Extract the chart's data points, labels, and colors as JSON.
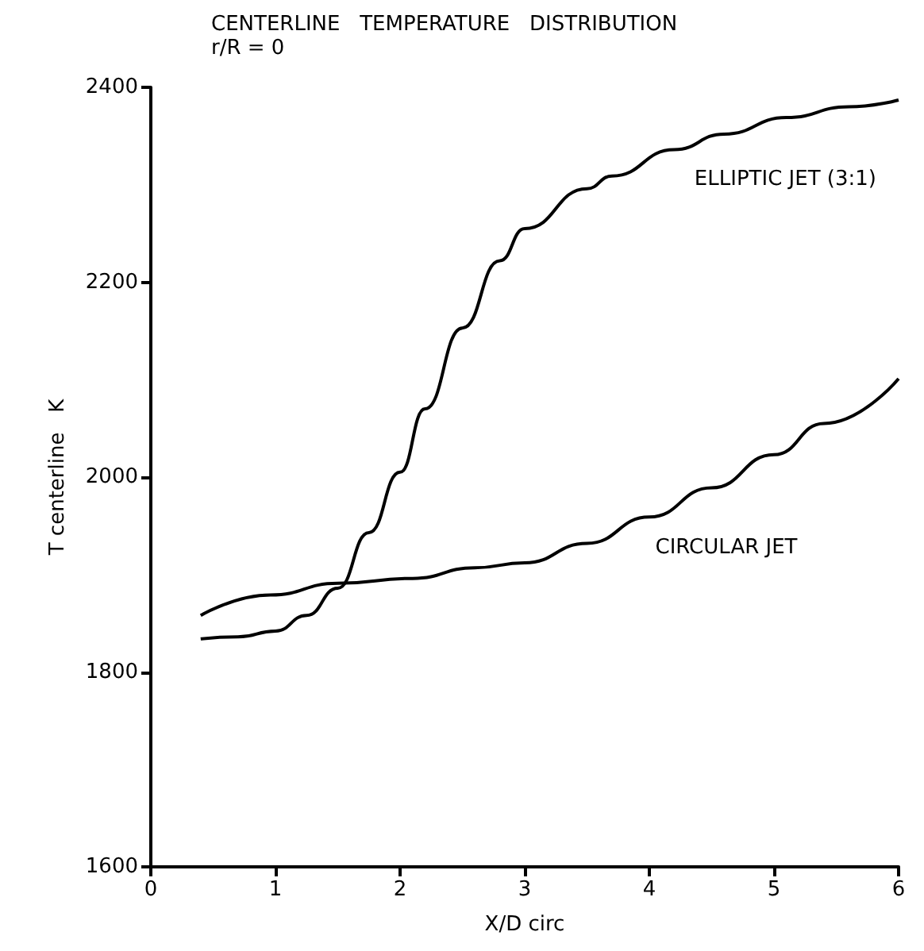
{
  "chart_data": {
    "type": "line",
    "title": "CENTERLINE   TEMPERATURE   DISTRIBUTION",
    "subtitle": "r/R = 0",
    "xlabel": "X/D circ",
    "ylabel": "T centerline   K",
    "xlim": [
      0,
      6
    ],
    "xticks": [
      0,
      1,
      2,
      3,
      4,
      5,
      6
    ],
    "ylim": [
      1600,
      2400
    ],
    "yticks": [
      1600,
      1800,
      2000,
      2200,
      2400
    ],
    "grid": false,
    "legend": false,
    "marker": "none",
    "line_style": "solid",
    "series": [
      {
        "name": "ELLIPTIC JET (3:1)",
        "color": "#000000",
        "x": [
          0.4,
          0.7,
          1.0,
          1.25,
          1.5,
          1.75,
          2.0,
          2.2,
          2.5,
          2.8,
          3.0,
          3.5,
          3.7,
          4.2,
          4.6,
          5.1,
          5.6,
          6.0
        ],
        "values": [
          1834,
          1836,
          1842,
          1858,
          1886,
          1943,
          2005,
          2070,
          2153,
          2222,
          2255,
          2296,
          2309,
          2336,
          2352,
          2369,
          2380,
          2387
        ]
      },
      {
        "name": "CIRCULAR JET",
        "color": "#000000",
        "x": [
          0.4,
          0.96,
          1.5,
          2.1,
          2.6,
          3.0,
          3.5,
          4.0,
          4.5,
          5.0,
          5.4,
          6.0
        ],
        "values": [
          1858,
          1879,
          1891,
          1896,
          1907,
          1912,
          1932,
          1959,
          1989,
          2023,
          2055,
          2101
        ]
      }
    ]
  }
}
